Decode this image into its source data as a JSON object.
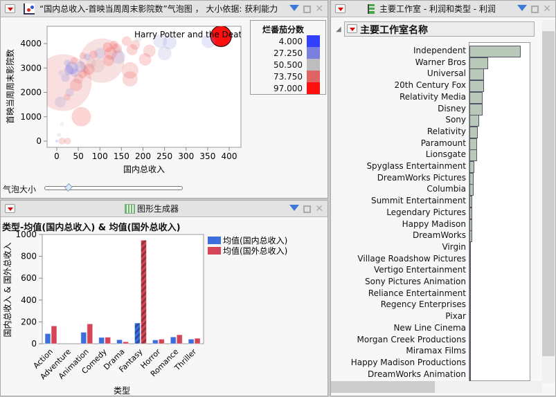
{
  "bubble_panel": {
    "title": "“国内总收入-首映当周周末影院数”气泡图 ， 大小依据: 获利能力",
    "slider_label": "气泡大小",
    "slider_value": 0.17,
    "legend_title": "烂番茄分数",
    "legend": [
      {
        "label": "4.000",
        "color": "#3340ff"
      },
      {
        "label": "27.250",
        "color": "#7b80e0"
      },
      {
        "label": "50.500",
        "color": "#bdbdbd"
      },
      {
        "label": "73.750",
        "color": "#df6464"
      },
      {
        "label": "97.000",
        "color": "#ff1010"
      }
    ],
    "annotation": "Harry Potter and the Death"
  },
  "chart_data": [
    {
      "type": "scatter",
      "title": "“国内总收入-首映当周周末影院数”气泡图",
      "xlabel": "国内总收入",
      "ylabel": "首映当周周末影院数",
      "xlim": [
        -20,
        420
      ],
      "ylim": [
        -300,
        4550
      ],
      "xticks": [
        "0",
        "50",
        "100",
        "150",
        "200",
        "250",
        "300",
        "350",
        "400"
      ],
      "yticks": [
        "0",
        "1000",
        "2000",
        "3000",
        "4000"
      ],
      "points": [
        [
          381,
          4300,
          15,
          97
        ],
        [
          15,
          2400,
          41,
          75
        ],
        [
          105,
          3300,
          32,
          72
        ],
        [
          57,
          1000,
          14,
          90
        ],
        [
          170,
          2900,
          12,
          82
        ],
        [
          170,
          2550,
          11,
          80
        ],
        [
          205,
          3350,
          9,
          85
        ],
        [
          215,
          3700,
          9,
          80
        ],
        [
          250,
          3600,
          10,
          35
        ],
        [
          262,
          4050,
          10,
          30
        ],
        [
          240,
          4100,
          10,
          35
        ],
        [
          352,
          4100,
          10,
          30
        ],
        [
          143,
          3450,
          10,
          30
        ],
        [
          8,
          1600,
          8,
          35
        ],
        [
          30,
          2000,
          6,
          30
        ],
        [
          20,
          2600,
          6,
          25
        ],
        [
          35,
          3000,
          9,
          15
        ],
        [
          28,
          2900,
          7,
          10
        ],
        [
          42,
          2800,
          6,
          20
        ],
        [
          45,
          2300,
          9,
          80
        ],
        [
          50,
          2550,
          7,
          70
        ],
        [
          60,
          2750,
          6,
          90
        ],
        [
          75,
          2950,
          8,
          90
        ],
        [
          80,
          3200,
          7,
          60
        ],
        [
          70,
          3450,
          5,
          15
        ],
        [
          85,
          3550,
          6,
          85
        ],
        [
          100,
          3600,
          8,
          30
        ],
        [
          118,
          3850,
          7,
          90
        ],
        [
          125,
          3600,
          9,
          85
        ],
        [
          133,
          3950,
          6,
          90
        ],
        [
          140,
          3800,
          7,
          80
        ],
        [
          162,
          4100,
          7,
          85
        ],
        [
          175,
          3750,
          8,
          88
        ],
        [
          182,
          3950,
          7,
          80
        ],
        [
          190,
          4200,
          5,
          45
        ],
        [
          95,
          3100,
          10,
          60
        ],
        [
          120,
          3300,
          8,
          85
        ],
        [
          60,
          3500,
          5,
          75
        ],
        [
          40,
          3300,
          5,
          80
        ],
        [
          24,
          1800,
          5,
          75
        ],
        [
          12,
          700,
          3,
          50
        ],
        [
          5,
          250,
          3,
          45
        ],
        [
          12,
          0,
          5,
          80
        ],
        [
          25,
          0,
          5,
          85
        ],
        [
          0,
          0,
          2,
          10
        ],
        [
          10,
          2800,
          4,
          40
        ],
        [
          25,
          3200,
          5,
          20
        ],
        [
          55,
          3050,
          8,
          25
        ]
      ]
    },
    {
      "type": "bar",
      "title": "类型-均值(国内总收入) & 均值(国外总收入)",
      "xlabel": "类型",
      "ylabel": "国内总收入 & 国外总收入",
      "ylim": [
        0,
        1000
      ],
      "yticks": [
        "0",
        "200",
        "400",
        "600",
        "800",
        "1000"
      ],
      "categories": [
        "Action",
        "Adventure",
        "Animation",
        "Comedy",
        "Drama",
        "Fantasy",
        "Horror",
        "Romance",
        "Thriller"
      ],
      "series": [
        {
          "name": "均值(国内总收入)",
          "color": "#3d6fdc",
          "values": [
            93,
            0,
            105,
            58,
            37,
            190,
            35,
            62,
            42
          ]
        },
        {
          "name": "均值(国外总收入)",
          "color": "#d44657",
          "values": [
            163,
            0,
            182,
            60,
            18,
            948,
            42,
            82,
            50
          ]
        }
      ]
    },
    {
      "type": "bar",
      "orientation": "horizontal",
      "title": "主要工作室名称",
      "value_label": "利润",
      "categories": [
        "Independent",
        "Warner Bros",
        "Universal",
        "20th Century Fox",
        "Relativity Media",
        "Disney",
        "Sony",
        "Relativity",
        "Paramount",
        "Lionsgate",
        "Spyglass Entertainment",
        "DreamWorks Pictures",
        "Columbia",
        "Summit Entertainment",
        "Legendary Pictures",
        "Happy Madison",
        "DreamWorks",
        "Virgin",
        "Village Roadshow Pictures",
        "Vertigo Entertainment",
        "Sony Pictures Animation",
        "Reliance Entertainment",
        "Regency Enterprises",
        "Pixar",
        "New Line Cinema",
        "Morgan Creek Productions",
        "Miramax Films",
        "Happy Madison Productions",
        "DreamWorks Animation"
      ],
      "values": [
        1.0,
        0.37,
        0.28,
        0.28,
        0.25,
        0.25,
        0.19,
        0.16,
        0.15,
        0.15,
        0.09,
        0.08,
        0.08,
        0.06,
        0.06,
        0.05,
        0.05,
        0.01,
        0.01,
        0.01,
        0.01,
        0.01,
        0.01,
        0.01,
        0.01,
        0.01,
        0.01,
        0.01,
        0.01
      ]
    }
  ],
  "bar_panel": {
    "title": "图形生成器"
  },
  "studio_panel": {
    "title": "主要工作室 - 利润和类型 - 利润",
    "outline_title": "主要工作室名称"
  }
}
